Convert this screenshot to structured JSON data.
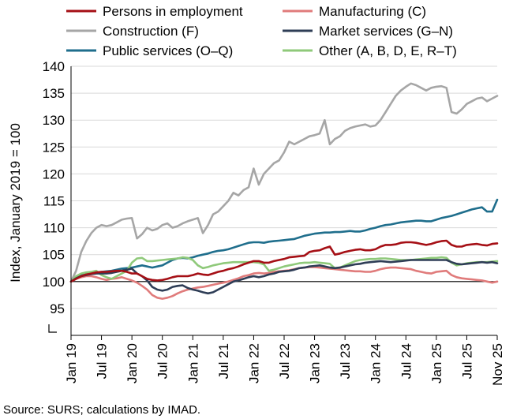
{
  "source": "Source: SURS; calculations by IMAD.",
  "chart_data": {
    "type": "line",
    "title": "",
    "ylabel": "Index, January 2019 = 100",
    "xlabel": "",
    "ylim": [
      90,
      140
    ],
    "yticks": [
      "95",
      "100",
      "105",
      "110",
      "115",
      "120",
      "125",
      "130",
      "135",
      "140"
    ],
    "xlim": [
      "2019-01",
      "2025-11"
    ],
    "xticks": [
      "Jan 19",
      "Jul 19",
      "Jan 20",
      "Jul 20",
      "Jan 21",
      "Jul 21",
      "Jan 22",
      "Jul 22",
      "Jan 23",
      "Jul 23",
      "Jan 24",
      "Jul 24",
      "Jan 25",
      "Jul 25",
      "Nov 25"
    ],
    "grid": "horizontal",
    "legend": "top",
    "reference_line": 100,
    "series": [
      {
        "name": "Persons in employment",
        "color": "#a50f15",
        "values": [
          100,
          100.5,
          101,
          101.3,
          101.5,
          101.7,
          101.8,
          101.8,
          101.9,
          102,
          102,
          101.8,
          101.5,
          101.5,
          101,
          100.5,
          100.3,
          100.2,
          100.3,
          100.5,
          100.8,
          101,
          101,
          101,
          101.2,
          101.5,
          101.3,
          101.2,
          101.5,
          101.8,
          102,
          102.3,
          102.5,
          102.8,
          103.2,
          103.5,
          103.8,
          103.8,
          103.5,
          103.5,
          103.8,
          104,
          104.2,
          104.5,
          104.6,
          104.7,
          104.8,
          105.5,
          105.7,
          105.8,
          106.2,
          106.5,
          105,
          105.2,
          105.5,
          105.7,
          105.9,
          106,
          105.8,
          105.8,
          106,
          106.5,
          106.8,
          106.8,
          106.9,
          107.2,
          107.3,
          107.3,
          107.2,
          107,
          106.8,
          107,
          107.3,
          107.5,
          107.6,
          106.8,
          106.5,
          106.5,
          106.8,
          106.9,
          107,
          106.8,
          106.7,
          107,
          107.1
        ]
      },
      {
        "name": "Manufacturing (C)",
        "color": "#e07b7b",
        "values": [
          100,
          100.5,
          100.8,
          101,
          101,
          100.8,
          100.5,
          100.3,
          100.5,
          100.6,
          100.8,
          100.5,
          100.2,
          99.8,
          99.2,
          98.5,
          97.5,
          97,
          96.8,
          97,
          97.3,
          97.8,
          98.2,
          98.5,
          98.7,
          98.9,
          99,
          99.2,
          99.4,
          99.6,
          99.8,
          100,
          100.3,
          100.6,
          101,
          101.2,
          101.5,
          101.6,
          101.5,
          101.6,
          101.8,
          101.9,
          102,
          102.1,
          102.3,
          102.5,
          102.6,
          102.7,
          102.7,
          102.6,
          102.5,
          102.4,
          102.3,
          102.2,
          102.1,
          102,
          101.9,
          101.9,
          101.8,
          101.8,
          102,
          102.3,
          102.5,
          102.6,
          102.6,
          102.5,
          102.4,
          102.3,
          102,
          101.8,
          101.6,
          101.5,
          101.8,
          101.9,
          102,
          101.2,
          100.8,
          100.6,
          100.5,
          100.4,
          100.3,
          100.2,
          100,
          99.8,
          100
        ]
      },
      {
        "name": "Construction (F)",
        "color": "#a6a6a6",
        "values": [
          100,
          102,
          105.5,
          107.5,
          109,
          110,
          110.5,
          110.3,
          110.5,
          111,
          111.5,
          111.7,
          111.8,
          108,
          108.8,
          110,
          109.5,
          109.8,
          110.5,
          110.8,
          110,
          110.3,
          110.8,
          111.2,
          111.5,
          111.8,
          109,
          110.5,
          112.5,
          113,
          114,
          115,
          116.5,
          116,
          117,
          117.5,
          121,
          118,
          120,
          121,
          122,
          122.5,
          124,
          126,
          125.5,
          126,
          126.5,
          127,
          127.2,
          127.5,
          130,
          125.5,
          126.5,
          127,
          128,
          128.5,
          128.8,
          129,
          129.2,
          128.8,
          129,
          130,
          131.5,
          133,
          134.5,
          135.5,
          136.2,
          136.8,
          136.5,
          136,
          135.5,
          136,
          136.2,
          136.3,
          136,
          131.5,
          131.2,
          132,
          133,
          133.5,
          134,
          134.2,
          133.5,
          134,
          134.5
        ]
      },
      {
        "name": "Market services (G–N)",
        "color": "#2e3d56",
        "values": [
          100,
          100.6,
          101,
          101.2,
          101.4,
          101.5,
          101.5,
          101.5,
          101.6,
          101.8,
          102,
          102.2,
          102.4,
          101.5,
          101,
          100.2,
          99,
          98.5,
          98.3,
          98.5,
          99,
          99.2,
          99.3,
          98.8,
          98.5,
          98.3,
          98,
          97.8,
          98,
          98.5,
          99,
          99.5,
          100,
          100.2,
          100.5,
          100.8,
          101,
          100.8,
          101,
          101.3,
          101.5,
          101.8,
          101.9,
          102,
          102.2,
          102.5,
          102.6,
          102.8,
          102.9,
          103,
          102.8,
          102.6,
          102.5,
          102.6,
          102.8,
          103,
          103.2,
          103.3,
          103.5,
          103.6,
          103.7,
          103.8,
          103.7,
          103.6,
          103.7,
          103.8,
          103.9,
          104,
          104,
          104,
          104,
          104,
          104,
          104,
          104,
          103.6,
          103.3,
          103.2,
          103.3,
          103.4,
          103.5,
          103.6,
          103.5,
          103.6,
          103.4
        ]
      },
      {
        "name": "Public services (O–Q)",
        "color": "#1f6e8c",
        "values": [
          100,
          100.8,
          101.2,
          101.5,
          101.6,
          101.6,
          101.8,
          101.9,
          102,
          102.2,
          102.4,
          102.5,
          102.6,
          102.8,
          103,
          102.8,
          102.6,
          102.8,
          103,
          103.5,
          104,
          104.3,
          104.4,
          104.3,
          104.5,
          104.8,
          105,
          105.2,
          105.5,
          105.7,
          105.8,
          106,
          106.3,
          106.6,
          106.9,
          107.2,
          107.3,
          107.3,
          107.2,
          107.4,
          107.5,
          107.6,
          107.7,
          107.8,
          107.9,
          108.2,
          108.5,
          108.7,
          108.9,
          109,
          109.1,
          109.1,
          109.2,
          109.2,
          109.3,
          109.4,
          109.3,
          109.3,
          109.5,
          109.8,
          110,
          110.3,
          110.5,
          110.6,
          110.8,
          111,
          111.1,
          111.2,
          111.3,
          111.3,
          111.2,
          111.2,
          111.5,
          111.8,
          112,
          112.2,
          112.5,
          112.8,
          113.1,
          113.4,
          113.6,
          113.8,
          113,
          113,
          115.2
        ]
      },
      {
        "name": "Other (A, B, D, E, R–T)",
        "color": "#8fc97a",
        "values": [
          100,
          101,
          101.5,
          101.7,
          101.8,
          102,
          101.2,
          100.8,
          100.5,
          101,
          101.5,
          102,
          103.5,
          104.3,
          104.4,
          103.8,
          103.8,
          103.9,
          104,
          104.1,
          104.2,
          104.3,
          104.5,
          104.4,
          104,
          103,
          102.5,
          102.7,
          103,
          103.2,
          103.4,
          103.5,
          103.6,
          103.6,
          103.6,
          103.6,
          103.6,
          103.5,
          103.2,
          102,
          102.2,
          102.5,
          102.8,
          103,
          103.2,
          103.4,
          103.5,
          103.5,
          103.6,
          103.5,
          103.4,
          103.3,
          102.5,
          102.6,
          103,
          103.4,
          103.8,
          104,
          104.1,
          104.2,
          104.2,
          104.3,
          104.3,
          104.2,
          104.1,
          104,
          104,
          104,
          104.1,
          104.2,
          104.3,
          104.4,
          104.4,
          104.5,
          104.4,
          103.5,
          103,
          103.2,
          103.4,
          103.5,
          103.6,
          103.6,
          103.6,
          103.7,
          103.8
        ]
      }
    ]
  }
}
